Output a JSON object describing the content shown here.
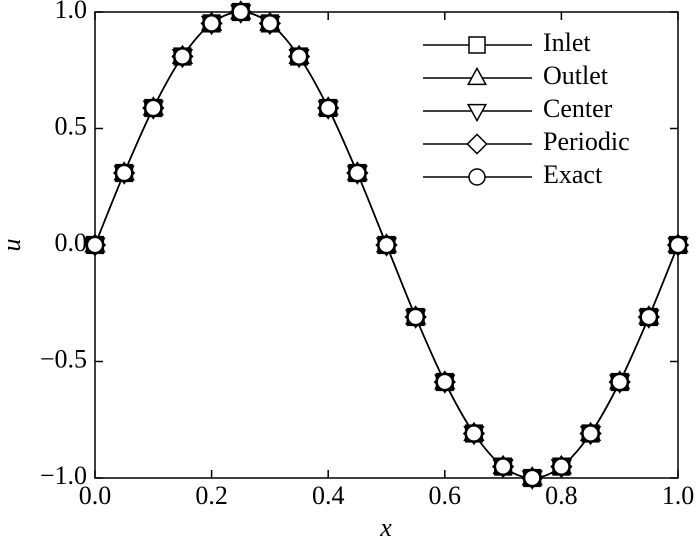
{
  "chart_data": {
    "type": "line",
    "x": [
      0,
      0.05,
      0.1,
      0.15,
      0.2,
      0.25,
      0.3,
      0.35,
      0.4,
      0.45,
      0.5,
      0.55,
      0.6,
      0.65,
      0.7,
      0.75,
      0.8,
      0.85,
      0.9,
      0.95,
      1
    ],
    "xlabel": "x",
    "ylabel": "u",
    "xlim": [
      0,
      1
    ],
    "ylim": [
      -1,
      1
    ],
    "xticks": [
      {
        "value": 0,
        "label": "0.0"
      },
      0.2,
      0.4,
      0.6,
      0.8,
      {
        "value": 1,
        "label": "1.0"
      }
    ],
    "yticks": [
      {
        "value": -1,
        "label": "−1.0"
      },
      {
        "value": -0.5,
        "label": "−0.5"
      },
      {
        "value": 0,
        "label": "0.0"
      },
      0.5,
      {
        "value": 1,
        "label": "1.0"
      }
    ],
    "legend": "upper right",
    "series": [
      {
        "name": "Inlet",
        "color": "#000000",
        "marker": "square",
        "values": [
          0,
          0.309,
          0.588,
          0.809,
          0.951,
          1,
          0.951,
          0.809,
          0.588,
          0.309,
          0,
          -0.309,
          -0.588,
          -0.809,
          -0.951,
          -1,
          -0.951,
          -0.809,
          -0.588,
          -0.309,
          0
        ]
      },
      {
        "name": "Outlet",
        "color": "#000000",
        "marker": "triangle-up",
        "values": [
          0,
          0.309,
          0.588,
          0.809,
          0.951,
          1,
          0.951,
          0.809,
          0.588,
          0.309,
          0,
          -0.309,
          -0.588,
          -0.809,
          -0.951,
          -1,
          -0.951,
          -0.809,
          -0.588,
          -0.309,
          0
        ]
      },
      {
        "name": "Center",
        "color": "#000000",
        "marker": "triangle-down",
        "values": [
          0,
          0.309,
          0.588,
          0.809,
          0.951,
          1,
          0.951,
          0.809,
          0.588,
          0.309,
          0,
          -0.309,
          -0.588,
          -0.809,
          -0.951,
          -1,
          -0.951,
          -0.809,
          -0.588,
          -0.309,
          0
        ]
      },
      {
        "name": "Periodic",
        "color": "#000000",
        "marker": "diamond",
        "values": [
          0,
          0.309,
          0.588,
          0.809,
          0.951,
          1,
          0.951,
          0.809,
          0.588,
          0.309,
          0,
          -0.309,
          -0.588,
          -0.809,
          -0.951,
          -1,
          -0.951,
          -0.809,
          -0.588,
          -0.309,
          0
        ]
      },
      {
        "name": "Exact",
        "color": "#000000",
        "marker": "circle",
        "values": [
          0,
          0.309,
          0.588,
          0.809,
          0.951,
          1,
          0.951,
          0.809,
          0.588,
          0.309,
          0,
          -0.309,
          -0.588,
          -0.809,
          -0.951,
          -1,
          -0.951,
          -0.809,
          -0.588,
          -0.309,
          0
        ]
      }
    ]
  }
}
